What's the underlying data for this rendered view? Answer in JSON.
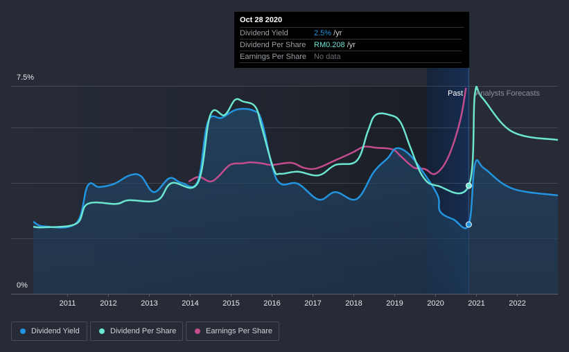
{
  "tooltip": {
    "date": "Oct 28 2020",
    "rows": [
      {
        "label": "Dividend Yield",
        "value": "2.5%",
        "unit": " /yr"
      },
      {
        "label": "Dividend Per Share",
        "value": "RM0.208",
        "unit": " /yr"
      },
      {
        "label": "Earnings Per Share",
        "value": "No data",
        "unit": ""
      }
    ]
  },
  "period_labels": {
    "past": "Past",
    "forecast": "Analysts Forecasts"
  },
  "legend": [
    {
      "label": "Dividend Yield",
      "color": "#2394df"
    },
    {
      "label": "Dividend Per Share",
      "color": "#6ce5d1"
    },
    {
      "label": "Earnings Per Share",
      "color": "#c24c8d"
    }
  ],
  "chart_data": {
    "type": "line",
    "title": "",
    "xlabel": "",
    "ylabel": "Dividend Yield",
    "y_tick_labels": [
      "0%",
      "7.5%"
    ],
    "ylim": [
      0,
      7.5
    ],
    "xlim": [
      2010.0,
      2023.0
    ],
    "x_tick_labels": [
      "2011",
      "2012",
      "2013",
      "2014",
      "2015",
      "2016",
      "2017",
      "2018",
      "2019",
      "2020",
      "2021",
      "2022"
    ],
    "x_ticks": [
      2011,
      2012,
      2013,
      2014,
      2015,
      2016,
      2017,
      2018,
      2019,
      2020,
      2021,
      2022
    ],
    "gridlines_pct": [
      2,
      4,
      6,
      7.5
    ],
    "grid": true,
    "past_highlight_range": [
      2019.8,
      2020.82
    ],
    "forecast_start": 2020.82,
    "colors": {
      "yield": "#2394df",
      "dps": "#6ce5d1",
      "eps": "#c24c8d"
    },
    "series": [
      {
        "name": "Dividend Yield",
        "unit": "%",
        "x": [
          2010.17,
          2010.45,
          2011.22,
          2011.5,
          2011.78,
          2012.15,
          2012.52,
          2012.8,
          2013.12,
          2013.5,
          2013.8,
          2014.19,
          2014.44,
          2014.78,
          2015.15,
          2015.57,
          2015.76,
          2016.01,
          2016.22,
          2016.64,
          2017.15,
          2017.56,
          2018.08,
          2018.5,
          2018.84,
          2019.05,
          2019.35,
          2019.69,
          2020.06,
          2020.12,
          2020.45,
          2020.82,
          2020.97,
          2021.2,
          2021.88,
          2023.0
        ],
        "values": [
          2.6,
          2.43,
          2.55,
          3.9,
          3.85,
          3.97,
          4.27,
          4.25,
          3.67,
          4.17,
          4.0,
          4.05,
          6.2,
          6.35,
          6.65,
          6.6,
          6.22,
          4.6,
          3.97,
          3.97,
          3.4,
          3.67,
          3.42,
          4.4,
          4.9,
          5.25,
          5.05,
          4.42,
          3.55,
          2.97,
          2.68,
          2.5,
          4.67,
          4.52,
          3.8,
          3.55
        ]
      },
      {
        "name": "Dividend Per Share",
        "unit": "RM",
        "x": [
          2010.17,
          2010.45,
          2011.22,
          2011.5,
          2012.2,
          2012.5,
          2013.2,
          2013.55,
          2014.19,
          2014.5,
          2014.85,
          2015.1,
          2015.3,
          2015.6,
          2015.76,
          2016.05,
          2016.22,
          2016.64,
          2017.15,
          2017.56,
          2018.08,
          2018.35,
          2018.54,
          2018.89,
          2019.15,
          2019.4,
          2019.7,
          2020.05,
          2020.82,
          2020.97,
          2021.15,
          2021.88,
          2023.0
        ],
        "values": [
          0.129,
          0.128,
          0.135,
          0.173,
          0.173,
          0.18,
          0.18,
          0.213,
          0.213,
          0.344,
          0.344,
          0.373,
          0.37,
          0.36,
          0.32,
          0.24,
          0.231,
          0.235,
          0.228,
          0.248,
          0.256,
          0.312,
          0.344,
          0.344,
          0.33,
          0.28,
          0.225,
          0.208,
          0.208,
          0.384,
          0.377,
          0.312,
          0.296
        ]
      },
      {
        "name": "Earnings Per Share",
        "unit": "RM",
        "x": [
          2013.97,
          2014.22,
          2014.49,
          2014.69,
          2014.98,
          2015.29,
          2015.49,
          2015.76,
          2016.0,
          2016.48,
          2016.77,
          2017.08,
          2017.56,
          2017.98,
          2018.26,
          2018.56,
          2018.95,
          2019.18,
          2019.48,
          2019.75,
          2020.0,
          2020.3,
          2020.6,
          2020.75
        ],
        "values": [
          0.216,
          0.225,
          0.216,
          0.225,
          0.248,
          0.251,
          0.253,
          0.251,
          0.248,
          0.252,
          0.243,
          0.241,
          0.257,
          0.272,
          0.283,
          0.281,
          0.278,
          0.263,
          0.243,
          0.24,
          0.231,
          0.26,
          0.33,
          0.396
        ]
      }
    ],
    "markers": [
      {
        "series": "Dividend Yield",
        "x": 2020.82,
        "value": 2.5
      },
      {
        "series": "Dividend Per Share",
        "x": 2020.82,
        "value": 0.208
      }
    ]
  }
}
